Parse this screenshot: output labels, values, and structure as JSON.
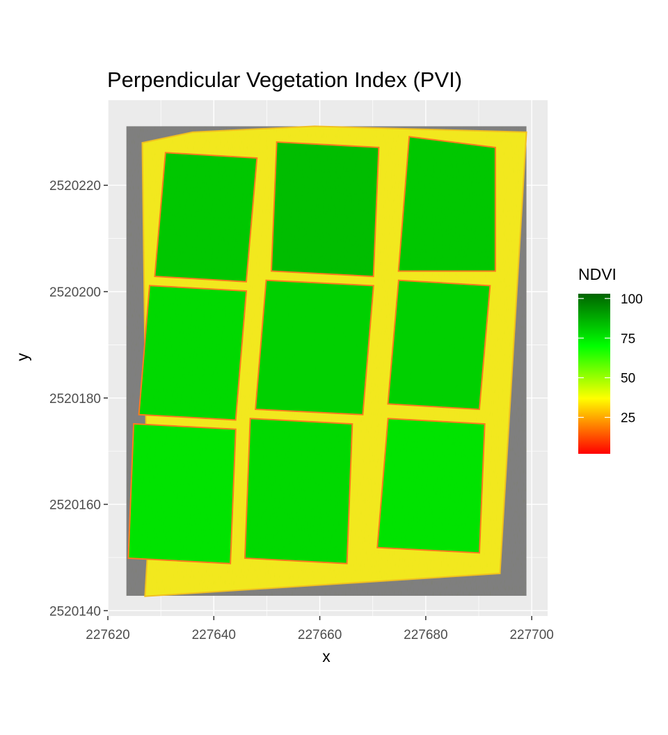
{
  "chart_data": {
    "type": "heatmap",
    "title": "Perpendicular Vegetation Index (PVI)",
    "xlabel": "x",
    "ylabel": "y",
    "xlim": [
      227620,
      227703
    ],
    "ylim": [
      2520139,
      2520236
    ],
    "x_ticks": [
      "227620",
      "227640",
      "227660",
      "227680",
      "227700"
    ],
    "y_ticks": [
      "2520140",
      "2520160",
      "2520180",
      "2520200",
      "2520220"
    ],
    "x_tick_values": [
      227620,
      227640,
      227660,
      227680,
      227700
    ],
    "y_tick_values": [
      2520140,
      2520160,
      2520180,
      2520200,
      2520220
    ],
    "grid": true,
    "raster_extent": {
      "xmin": 227623.5,
      "xmax": 227699,
      "ymin": 2520142.8,
      "ymax": 2520231.1
    },
    "field_polygon": [
      [
        227626.5,
        2520228
      ],
      [
        227636,
        2520230
      ],
      [
        227659,
        2520231.1
      ],
      [
        227699,
        2520230
      ],
      [
        227694,
        2520147
      ],
      [
        227627,
        2520142.7
      ],
      [
        227627.5,
        2520151
      ]
    ],
    "plots": [
      {
        "row": 1,
        "col": 1,
        "tl": [
          227631,
          2520226
        ],
        "tr": [
          227648,
          2520225
        ],
        "br": [
          227646,
          2520202
        ],
        "bl": [
          227629,
          2520203
        ],
        "mean_ndvi": 82
      },
      {
        "row": 1,
        "col": 2,
        "tl": [
          227652,
          2520228
        ],
        "tr": [
          227671,
          2520227
        ],
        "br": [
          227670,
          2520203
        ],
        "bl": [
          227651,
          2520204
        ],
        "mean_ndvi": 84
      },
      {
        "row": 1,
        "col": 3,
        "tl": [
          227677,
          2520229
        ],
        "tr": [
          227693,
          2520227
        ],
        "br": [
          227693,
          2520204
        ],
        "bl": [
          227675,
          2520204
        ],
        "mean_ndvi": 82
      },
      {
        "row": 2,
        "col": 1,
        "tl": [
          227628,
          2520201
        ],
        "tr": [
          227646,
          2520200
        ],
        "br": [
          227644,
          2520176
        ],
        "bl": [
          227626,
          2520177
        ],
        "mean_ndvi": 78
      },
      {
        "row": 2,
        "col": 2,
        "tl": [
          227650,
          2520202
        ],
        "tr": [
          227670,
          2520201
        ],
        "br": [
          227668,
          2520177
        ],
        "bl": [
          227648,
          2520178
        ],
        "mean_ndvi": 80
      },
      {
        "row": 2,
        "col": 3,
        "tl": [
          227675,
          2520202
        ],
        "tr": [
          227692,
          2520201
        ],
        "br": [
          227690,
          2520178
        ],
        "bl": [
          227673,
          2520179
        ],
        "mean_ndvi": 80
      },
      {
        "row": 3,
        "col": 1,
        "tl": [
          227625,
          2520175
        ],
        "tr": [
          227644,
          2520174
        ],
        "br": [
          227643,
          2520149
        ],
        "bl": [
          227624,
          2520150
        ],
        "mean_ndvi": 76
      },
      {
        "row": 3,
        "col": 2,
        "tl": [
          227647,
          2520176
        ],
        "tr": [
          227666,
          2520175
        ],
        "br": [
          227665,
          2520149
        ],
        "bl": [
          227646,
          2520150
        ],
        "mean_ndvi": 78
      },
      {
        "row": 3,
        "col": 3,
        "tl": [
          227673,
          2520176
        ],
        "tr": [
          227691,
          2520175
        ],
        "br": [
          227690,
          2520151
        ],
        "bl": [
          227671,
          2520152
        ],
        "mean_ndvi": 76
      }
    ],
    "legend": {
      "title": "NDVI",
      "position": "right",
      "breaks": [
        "100",
        "75",
        "50",
        "25"
      ],
      "break_values": [
        100,
        75,
        50,
        25
      ],
      "limits": [
        2,
        103
      ],
      "gradient_stops": [
        {
          "value": 2,
          "color": "#ff0000"
        },
        {
          "value": 37,
          "color": "#ffff00"
        },
        {
          "value": 70,
          "color": "#00ff00"
        },
        {
          "value": 103,
          "color": "#006400"
        }
      ]
    },
    "colors": {
      "panel_background": "#ebebeb",
      "gridline_major": "#ffffff",
      "no_data": "#7f7f7f",
      "low": "#ff0000",
      "mid": "#ffff00",
      "high": "#00ff00",
      "very_high": "#006400"
    }
  }
}
